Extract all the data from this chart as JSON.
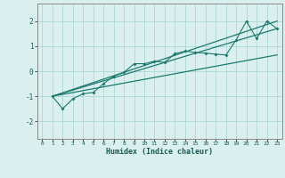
{
  "xlabel": "Humidex (Indice chaleur)",
  "ylabel": "",
  "bg_color": "#daf0ee",
  "grid_color": "#aed8d4",
  "line_color": "#1a7a6e",
  "xlim": [
    -0.5,
    23.5
  ],
  "ylim": [
    -2.7,
    2.7
  ],
  "xticks": [
    0,
    1,
    2,
    3,
    4,
    5,
    6,
    7,
    8,
    9,
    10,
    11,
    12,
    13,
    14,
    15,
    16,
    17,
    18,
    19,
    20,
    21,
    22,
    23
  ],
  "yticks": [
    -2,
    -1,
    0,
    1,
    2
  ],
  "scatter_x": [
    1,
    2,
    3,
    4,
    5,
    6,
    7,
    8,
    9,
    10,
    11,
    12,
    13,
    14,
    15,
    16,
    17,
    18,
    19,
    20,
    21,
    22,
    23
  ],
  "scatter_y": [
    -1.0,
    -1.5,
    -1.1,
    -0.9,
    -0.85,
    -0.5,
    -0.2,
    -0.05,
    0.3,
    0.3,
    0.4,
    0.35,
    0.7,
    0.8,
    0.75,
    0.72,
    0.68,
    0.65,
    1.25,
    2.0,
    1.3,
    2.0,
    1.7
  ],
  "line1_x": [
    1,
    23
  ],
  "line1_y": [
    -1.0,
    1.7
  ],
  "line2_x": [
    1,
    23
  ],
  "line2_y": [
    -1.0,
    2.0
  ],
  "line3_x": [
    1,
    23
  ],
  "line3_y": [
    -1.0,
    0.65
  ]
}
